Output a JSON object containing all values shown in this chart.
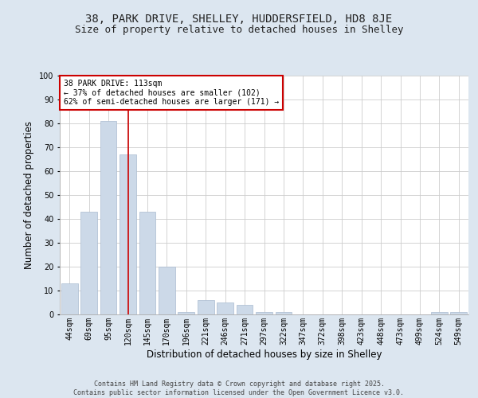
{
  "title1": "38, PARK DRIVE, SHELLEY, HUDDERSFIELD, HD8 8JE",
  "title2": "Size of property relative to detached houses in Shelley",
  "xlabel": "Distribution of detached houses by size in Shelley",
  "ylabel": "Number of detached properties",
  "categories": [
    "44sqm",
    "69sqm",
    "95sqm",
    "120sqm",
    "145sqm",
    "170sqm",
    "196sqm",
    "221sqm",
    "246sqm",
    "271sqm",
    "297sqm",
    "322sqm",
    "347sqm",
    "372sqm",
    "398sqm",
    "423sqm",
    "448sqm",
    "473sqm",
    "499sqm",
    "524sqm",
    "549sqm"
  ],
  "values": [
    13,
    43,
    81,
    67,
    43,
    20,
    1,
    6,
    5,
    4,
    1,
    1,
    0,
    0,
    0,
    0,
    0,
    0,
    0,
    1,
    1
  ],
  "bar_color": "#ccd9e8",
  "bar_edge_color": "#aabbd0",
  "vline_x": 3,
  "vline_color": "#cc0000",
  "annotation_text": "38 PARK DRIVE: 113sqm\n← 37% of detached houses are smaller (102)\n62% of semi-detached houses are larger (171) →",
  "annotation_box_color": "#cc0000",
  "ylim": [
    0,
    100
  ],
  "yticks": [
    0,
    10,
    20,
    30,
    40,
    50,
    60,
    70,
    80,
    90,
    100
  ],
  "fig_bg_color": "#dce6f0",
  "plot_bg_color": "#ffffff",
  "footer": "Contains HM Land Registry data © Crown copyright and database right 2025.\nContains public sector information licensed under the Open Government Licence v3.0.",
  "title_fontsize": 10,
  "subtitle_fontsize": 9,
  "tick_fontsize": 7,
  "xlabel_fontsize": 8.5,
  "ylabel_fontsize": 8.5,
  "footer_fontsize": 6
}
